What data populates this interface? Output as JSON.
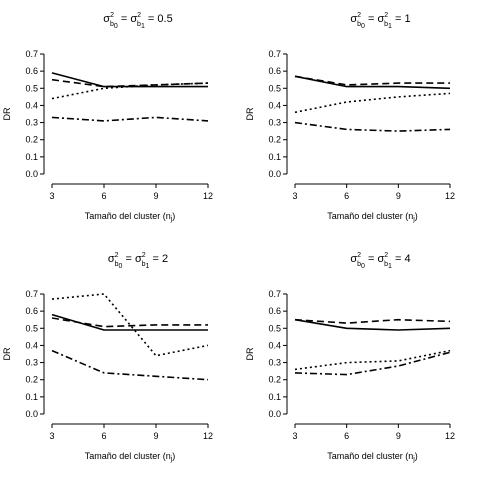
{
  "chart_data": [
    {
      "type": "line",
      "title": "σ²b₀ = σ²b₁ = 0.5",
      "title_value": "0.5",
      "xlabel": "Tamaño del cluster (n_j)",
      "ylabel": "DR",
      "x": [
        3,
        6,
        9,
        12
      ],
      "xticks": [
        "3",
        "6",
        "9",
        "12"
      ],
      "ylim": [
        0,
        0.7
      ],
      "yticks": [
        "0.0",
        "0.1",
        "0.2",
        "0.3",
        "0.4",
        "0.5",
        "0.6",
        "0.7"
      ],
      "series": [
        {
          "style": "solid",
          "values": [
            0.59,
            0.51,
            0.51,
            0.51
          ]
        },
        {
          "style": "dashed",
          "values": [
            0.55,
            0.51,
            0.52,
            0.53
          ]
        },
        {
          "style": "dotted",
          "values": [
            0.44,
            0.5,
            0.52,
            0.53
          ]
        },
        {
          "style": "dashdot",
          "values": [
            0.33,
            0.31,
            0.33,
            0.31
          ]
        }
      ]
    },
    {
      "type": "line",
      "title": "σ²b₀ = σ²b₁ = 1",
      "title_value": "1",
      "xlabel": "Tamaño del cluster (n_j)",
      "ylabel": "DR",
      "x": [
        3,
        6,
        9,
        12
      ],
      "xticks": [
        "3",
        "6",
        "9",
        "12"
      ],
      "ylim": [
        0,
        0.7
      ],
      "yticks": [
        "0.0",
        "0.1",
        "0.2",
        "0.3",
        "0.4",
        "0.5",
        "0.6",
        "0.7"
      ],
      "series": [
        {
          "style": "solid",
          "values": [
            0.57,
            0.51,
            0.51,
            0.5
          ]
        },
        {
          "style": "dashed",
          "values": [
            0.57,
            0.52,
            0.53,
            0.53
          ]
        },
        {
          "style": "dotted",
          "values": [
            0.36,
            0.42,
            0.45,
            0.47
          ]
        },
        {
          "style": "dashdot",
          "values": [
            0.3,
            0.26,
            0.25,
            0.26
          ]
        }
      ]
    },
    {
      "type": "line",
      "title": "σ²b₀ = σ²b₁ = 2",
      "title_value": "2",
      "xlabel": "Tamaño del cluster (n_j)",
      "ylabel": "DR",
      "x": [
        3,
        6,
        9,
        12
      ],
      "xticks": [
        "3",
        "6",
        "9",
        "12"
      ],
      "ylim": [
        0,
        0.7
      ],
      "yticks": [
        "0.0",
        "0.1",
        "0.2",
        "0.3",
        "0.4",
        "0.5",
        "0.6",
        "0.7"
      ],
      "series": [
        {
          "style": "solid",
          "values": [
            0.58,
            0.49,
            0.49,
            0.49
          ]
        },
        {
          "style": "dashed",
          "values": [
            0.56,
            0.51,
            0.52,
            0.52
          ]
        },
        {
          "style": "dotted",
          "values": [
            0.67,
            0.7,
            0.34,
            0.4
          ]
        },
        {
          "style": "dashdot",
          "values": [
            0.37,
            0.24,
            0.22,
            0.2
          ]
        }
      ]
    },
    {
      "type": "line",
      "title": "σ²b₀ = σ²b₁ = 4",
      "title_value": "4",
      "xlabel": "Tamaño del cluster (n_j)",
      "ylabel": "DR",
      "x": [
        3,
        6,
        9,
        12
      ],
      "xticks": [
        "3",
        "6",
        "9",
        "12"
      ],
      "ylim": [
        0,
        0.7
      ],
      "yticks": [
        "0.0",
        "0.1",
        "0.2",
        "0.3",
        "0.4",
        "0.5",
        "0.6",
        "0.7"
      ],
      "series": [
        {
          "style": "solid",
          "values": [
            0.55,
            0.5,
            0.49,
            0.5
          ]
        },
        {
          "style": "dashed",
          "values": [
            0.55,
            0.53,
            0.55,
            0.54
          ]
        },
        {
          "style": "dotted",
          "values": [
            0.26,
            0.3,
            0.31,
            0.37
          ]
        },
        {
          "style": "dashdot",
          "values": [
            0.24,
            0.23,
            0.28,
            0.36
          ]
        }
      ]
    }
  ],
  "labels": {
    "xlabel_main": "Tamaño del cluster (n",
    "xlabel_sub": "j",
    "xlabel_close": ")",
    "ylabel": "DR",
    "sigma": "σ",
    "sup2": "2",
    "sub_b0": "b",
    "sub_b1": "b",
    "sub0": "0",
    "sub1": "1",
    "eq": "=",
    "line_color": "#000000"
  }
}
